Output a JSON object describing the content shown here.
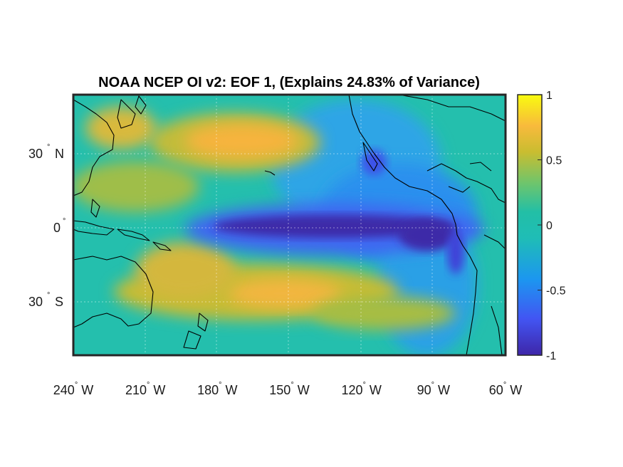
{
  "chart_data": {
    "type": "heatmap",
    "title": "NOAA NCEP OI v2: EOF 1, (Explains 24.83% of Variance)",
    "xlabel": "",
    "ylabel": "",
    "x_ticks": [
      {
        "deg": "240",
        "hemi": "W"
      },
      {
        "deg": "210",
        "hemi": "W"
      },
      {
        "deg": "180",
        "hemi": "W"
      },
      {
        "deg": "150",
        "hemi": "W"
      },
      {
        "deg": "120",
        "hemi": "W"
      },
      {
        "deg": "90",
        "hemi": "W"
      },
      {
        "deg": "60",
        "hemi": "W"
      }
    ],
    "y_ticks": [
      {
        "deg": "30",
        "hemi": "N"
      },
      {
        "deg": "0",
        "hemi": ""
      },
      {
        "deg": "30",
        "hemi": "S"
      }
    ],
    "colorbar": {
      "ticks": [
        "1",
        "0.5",
        "0",
        "-0.5",
        "-1"
      ],
      "range": [
        -1,
        1
      ],
      "colors": [
        "#3e26a8",
        "#4255f3",
        "#1c96f0",
        "#1fbdb6",
        "#42c686",
        "#a3bd39",
        "#f4b935",
        "#f9fb0f"
      ]
    },
    "grid": true,
    "description": "Leading EOF pattern of sea surface temperature over the tropical Pacific; strong negative (dark blue) band along the equator from the date line to South America, positive (yellow) lobes in the subtropical North and South Pacific."
  }
}
